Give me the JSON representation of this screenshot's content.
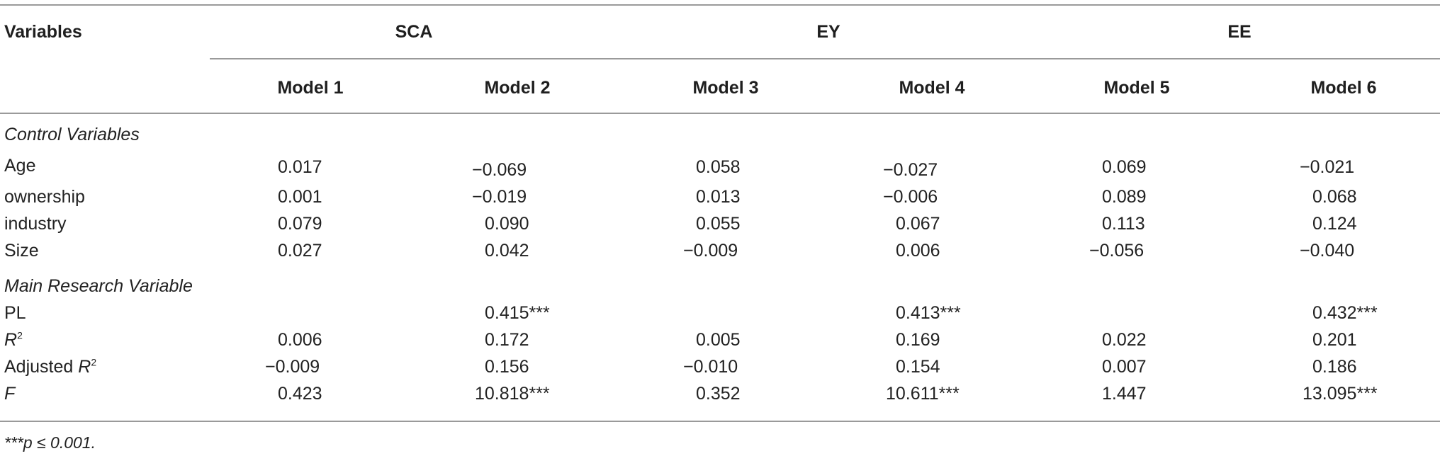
{
  "table": {
    "stub_header": "Variables",
    "groups": [
      "SCA",
      "EY",
      "EE"
    ],
    "models": [
      "Model 1",
      "Model 2",
      "Model 3",
      "Model 4",
      "Model 5",
      "Model 6"
    ],
    "sections": [
      {
        "title": "Control Variables",
        "rows": [
          {
            "label": "Age",
            "values": [
              "0.017",
              "−0.069",
              "0.058",
              "−0.027",
              "0.069",
              "−0.021"
            ]
          },
          {
            "label": "ownership",
            "values": [
              "0.001",
              "−0.019",
              "0.013",
              "−0.006",
              "0.089",
              "0.068"
            ]
          },
          {
            "label": "industry",
            "values": [
              "0.079",
              "0.090",
              "0.055",
              "0.067",
              "0.113",
              "0.124"
            ]
          },
          {
            "label": "Size",
            "values": [
              "0.027",
              "0.042",
              "−0.009",
              "0.006",
              "−0.056",
              "−0.040"
            ]
          }
        ]
      },
      {
        "title": "Main Research Variable",
        "rows": [
          {
            "label": "PL",
            "values": [
              "",
              "0.415***",
              "",
              "0.413***",
              "",
              "0.432***"
            ]
          },
          {
            "label": "R",
            "label_sup": "2",
            "label_italic": true,
            "values": [
              "0.006",
              "0.172",
              "0.005",
              "0.169",
              "0.022",
              "0.201"
            ]
          },
          {
            "label_prefix": "Adjusted ",
            "label": "R",
            "label_sup": "2",
            "label_italic": true,
            "values": [
              "−0.009",
              "0.156",
              "−0.010",
              "0.154",
              "0.007",
              "0.186"
            ]
          },
          {
            "label": "F",
            "label_italic": true,
            "values": [
              "0.423",
              "10.818***",
              "0.352",
              "10.611***",
              "1.447",
              "13.095***"
            ]
          }
        ]
      }
    ],
    "footnote": "***p ≤ 0.001."
  }
}
